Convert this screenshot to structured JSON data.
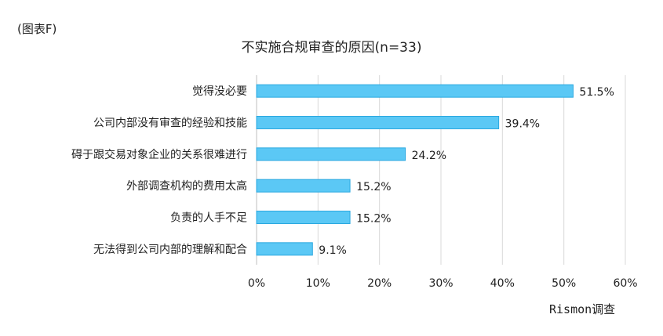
{
  "figure_label": "(图表F)",
  "source": "Rismon调查",
  "chart_data": {
    "type": "bar",
    "orientation": "horizontal",
    "title": "不实施合规审查的原因(n=33)",
    "categories": [
      "觉得没必要",
      "公司内部没有审查的经验和技能",
      "碍于跟交易对象企业的关系很难进行",
      "外部调查机构的费用太高",
      "负责的人手不足",
      "无法得到公司内部的理解和配合"
    ],
    "values": [
      51.5,
      39.4,
      24.2,
      15.2,
      15.2,
      9.1
    ],
    "data_labels": [
      "51.5%",
      "39.4%",
      "24.2%",
      "15.2%",
      "15.2%",
      "9.1%"
    ],
    "xlim": [
      0,
      60
    ],
    "xticks": [
      0,
      10,
      20,
      30,
      40,
      50,
      60
    ],
    "xtick_labels": [
      "0%",
      "10%",
      "20%",
      "30%",
      "40%",
      "50%",
      "60%"
    ],
    "grid": true,
    "bar_color": "#5bc8f5",
    "bar_edge_color": "#2aa8e0"
  }
}
